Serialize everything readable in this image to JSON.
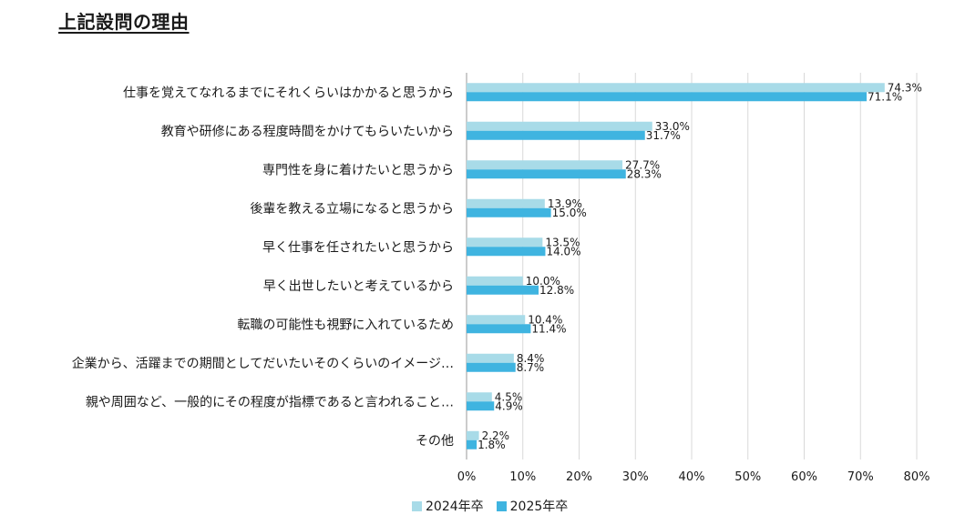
{
  "title": "上記設問の理由",
  "colors": {
    "series_2024": "#a8dbe8",
    "series_2025": "#3fb4e0",
    "axis": "#9a9a9a",
    "text": "#1a1a1a"
  },
  "chart_data": {
    "type": "bar",
    "orientation": "horizontal",
    "title": "上記設問の理由",
    "categories": [
      "仕事を覚えてなれるまでにそれくらいはかかると思うから",
      "教育や研修にある程度時間をかけてもらいたいから",
      "専門性を身に着けたいと思うから",
      "後輩を教える立場になると思うから",
      "早く仕事を任されたいと思うから",
      "早く出世したいと考えているから",
      "転職の可能性も視野に入れているため",
      "企業から、活躍までの期間としてだいたいそのくらいのイメージ…",
      "親や周囲など、一般的にその程度が指標であると言われること…",
      "その他"
    ],
    "series": [
      {
        "name": "2024年卒",
        "values": [
          74.3,
          33.0,
          27.7,
          13.9,
          13.5,
          10.0,
          10.4,
          8.4,
          4.5,
          2.2
        ],
        "labels": [
          "74.3%",
          "33.0%",
          "27.7%",
          "13.9%",
          "13.5%",
          "10.0%",
          "10.4%",
          "8.4%",
          "4.5%",
          "2.2%"
        ]
      },
      {
        "name": "2025年卒",
        "values": [
          71.1,
          31.7,
          28.3,
          15.0,
          14.0,
          12.8,
          11.4,
          8.7,
          4.9,
          1.8
        ],
        "labels": [
          "71.1%",
          "31.7%",
          "28.3%",
          "15.0%",
          "14.0%",
          "12.8%",
          "11.4%",
          "8.7%",
          "4.9%",
          "1.8%"
        ]
      }
    ],
    "xlim": [
      0,
      80
    ],
    "xticks": [
      0,
      10,
      20,
      30,
      40,
      50,
      60,
      70,
      80
    ],
    "xtick_labels": [
      "0%",
      "10%",
      "20%",
      "30%",
      "40%",
      "50%",
      "60%",
      "70%",
      "80%"
    ],
    "grid": true,
    "legend_position": "bottom"
  },
  "legend": [
    {
      "label": "2024年卒"
    },
    {
      "label": "2025年卒"
    }
  ]
}
